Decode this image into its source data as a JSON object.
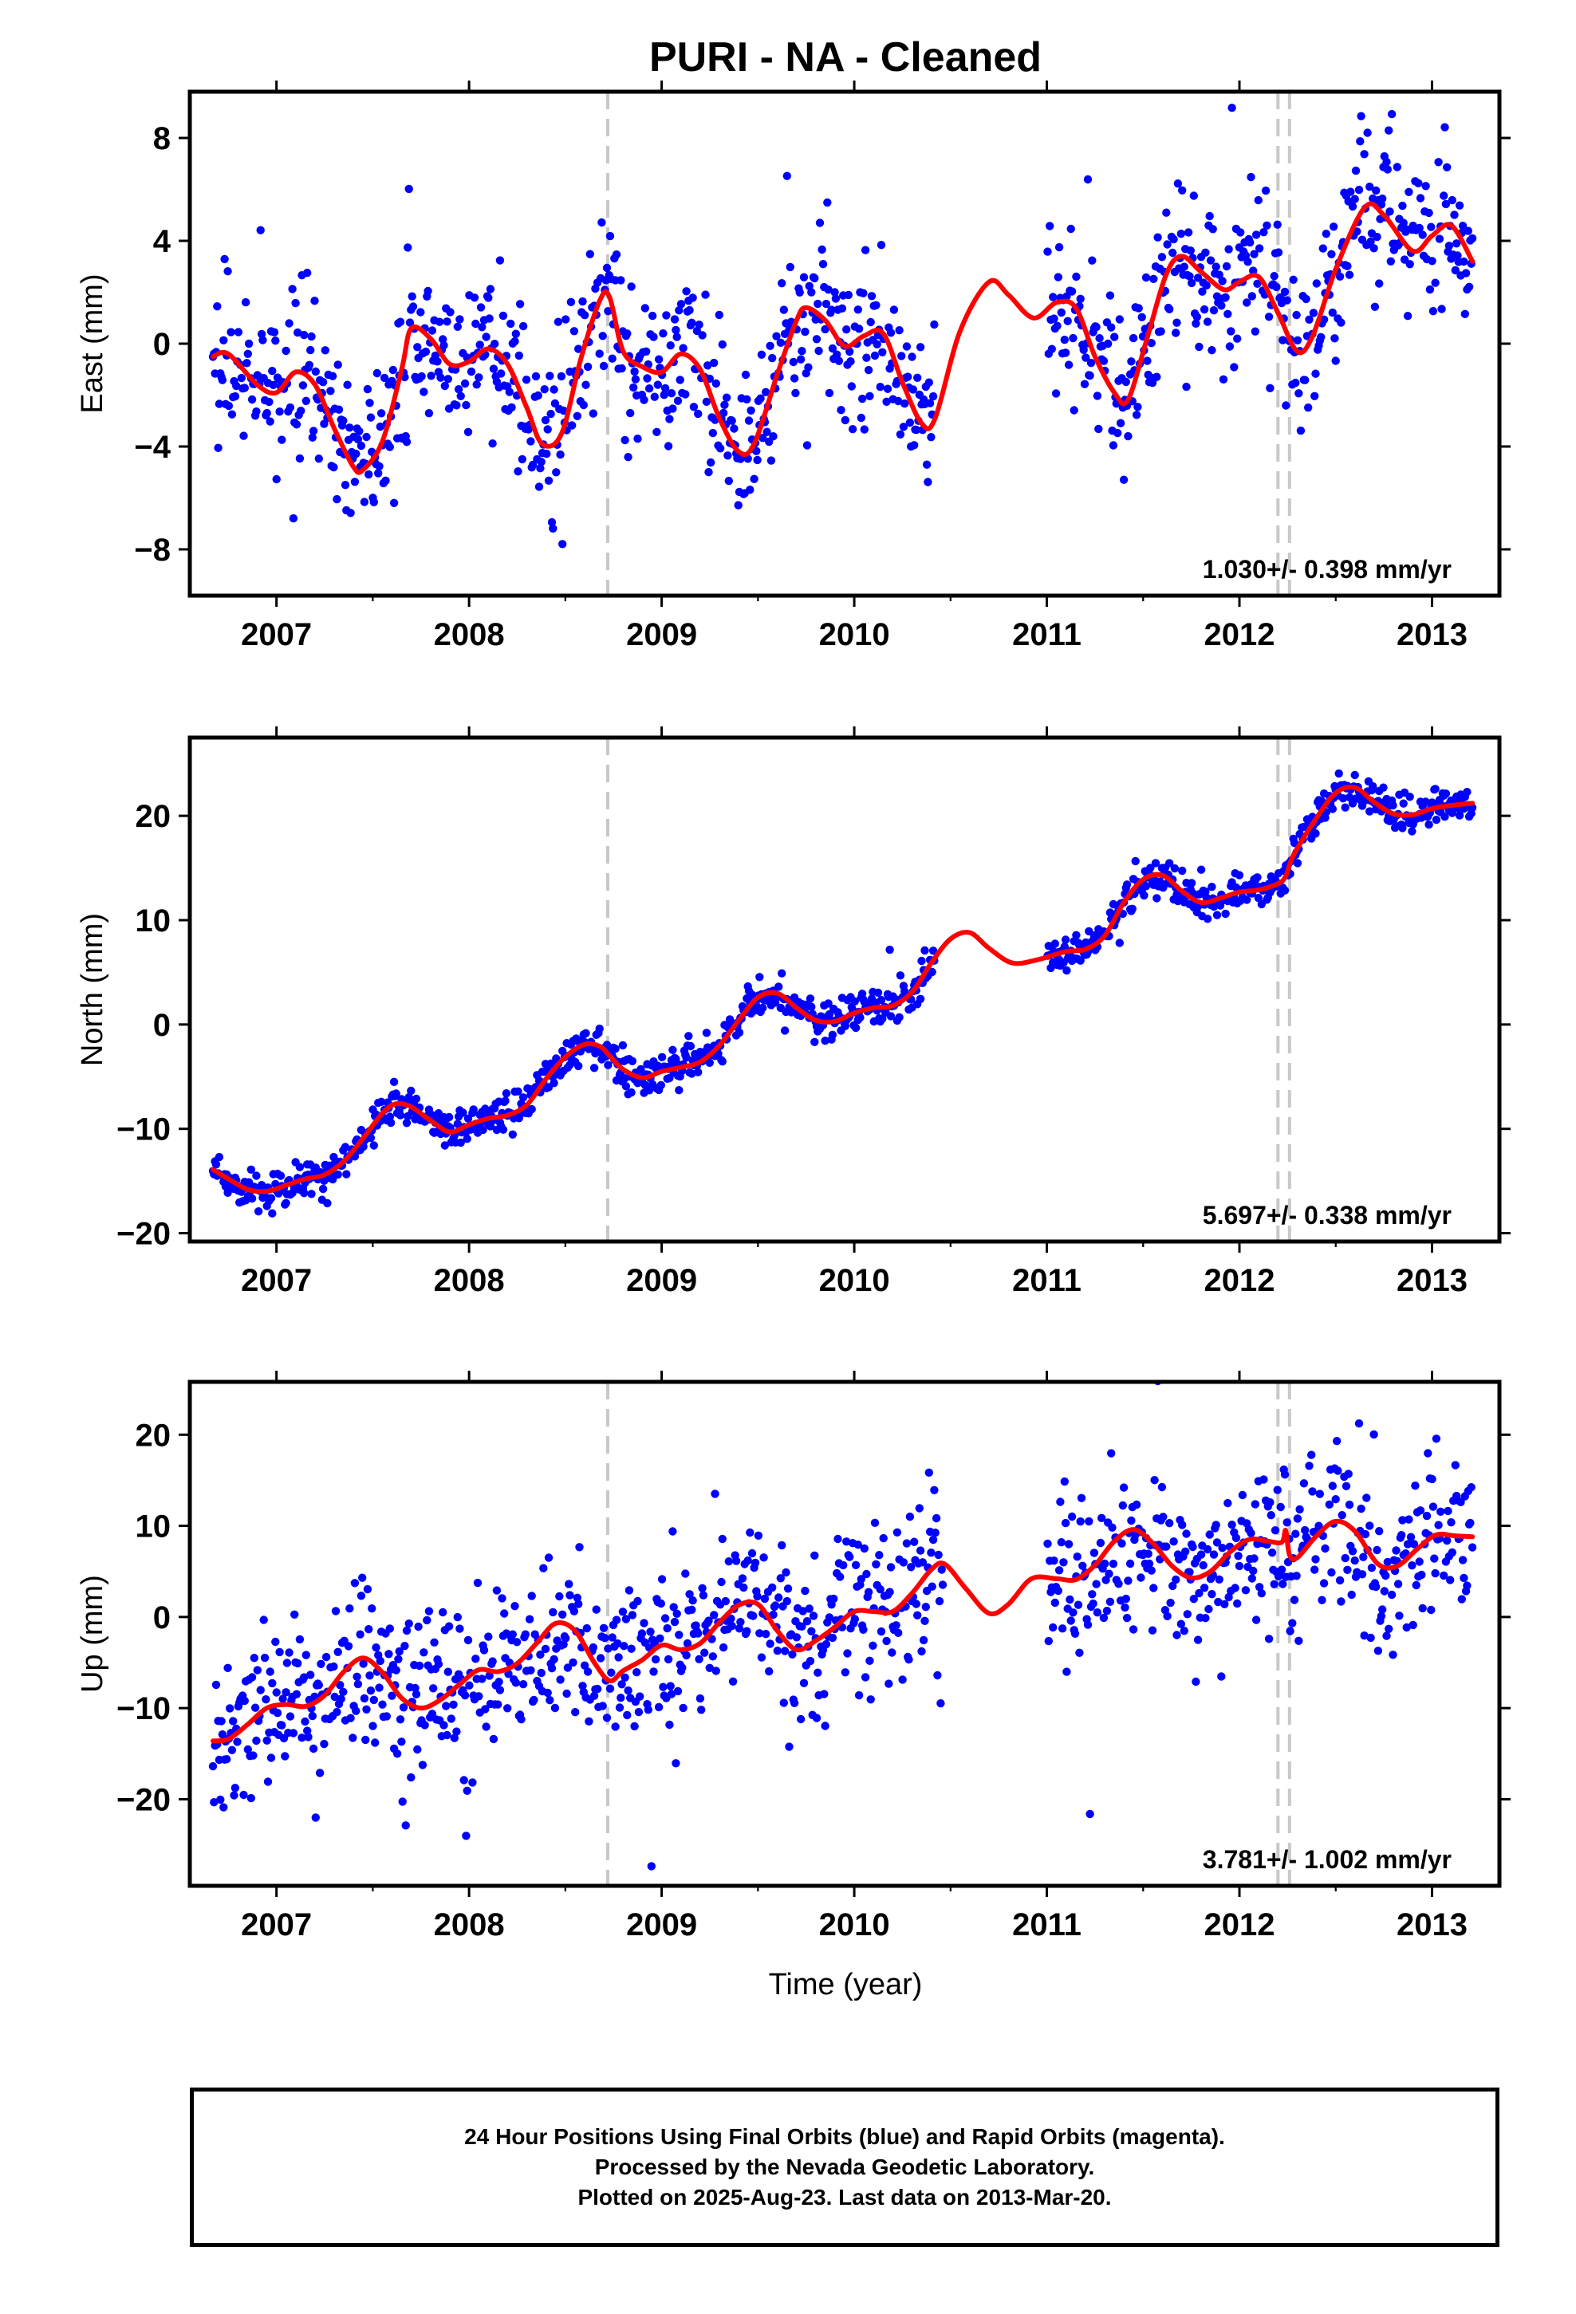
{
  "title": "PURI  - NA - Cleaned",
  "xlabel": "Time (year)",
  "footer": [
    "24 Hour Positions Using Final Orbits (blue) and Rapid Orbits (magenta).",
    "Processed by the Nevada Geodetic Laboratory.",
    "Plotted on 2025-Aug-23. Last data on 2013-Mar-20."
  ],
  "colors": {
    "data": "#0000ff",
    "fit": "#ff0000",
    "event": "#c8c8c8",
    "axis": "#000000"
  },
  "chart_data": [
    {
      "type": "scatter",
      "ylabel": "East (mm)",
      "xlim": [
        2006.55,
        2013.35
      ],
      "ylim": [
        -9.8,
        9.8
      ],
      "xticks": [
        2007,
        2008,
        2009,
        2010,
        2011,
        2012,
        2013
      ],
      "yticks": [
        -8,
        -4,
        0,
        4,
        8
      ],
      "rate": "1.030+/- 0.398 mm/yr",
      "events": [
        2008.72,
        2012.2,
        2012.26
      ],
      "data_gap": [
        2010.42,
        2011.0
      ],
      "trend": {
        "start": 2006.67,
        "end": 2013.21,
        "step": 0.0055,
        "base": -1.0,
        "slope": 1.03,
        "ref": 2006.67,
        "noise": 1.6,
        "outlier_rate": 0.01
      },
      "fit": [
        [
          2006.67,
          -0.5
        ],
        [
          2006.75,
          -0.4
        ],
        [
          2006.9,
          -1.6
        ],
        [
          2007.0,
          -1.9
        ],
        [
          2007.1,
          -1.1
        ],
        [
          2007.2,
          -1.6
        ],
        [
          2007.3,
          -3.3
        ],
        [
          2007.4,
          -4.8
        ],
        [
          2007.45,
          -4.9
        ],
        [
          2007.55,
          -3.8
        ],
        [
          2007.65,
          -1.0
        ],
        [
          2007.7,
          0.6
        ],
        [
          2007.8,
          0.2
        ],
        [
          2007.9,
          -0.8
        ],
        [
          2008.0,
          -0.7
        ],
        [
          2008.1,
          -0.2
        ],
        [
          2008.2,
          -0.8
        ],
        [
          2008.3,
          -2.5
        ],
        [
          2008.38,
          -3.9
        ],
        [
          2008.48,
          -3.5
        ],
        [
          2008.58,
          -0.6
        ],
        [
          2008.68,
          1.7
        ],
        [
          2008.73,
          1.8
        ],
        [
          2008.8,
          -0.3
        ],
        [
          2008.9,
          -0.9
        ],
        [
          2009.0,
          -1.1
        ],
        [
          2009.1,
          -0.4
        ],
        [
          2009.2,
          -1.0
        ],
        [
          2009.3,
          -2.9
        ],
        [
          2009.4,
          -4.2
        ],
        [
          2009.48,
          -3.9
        ],
        [
          2009.6,
          -1.2
        ],
        [
          2009.7,
          0.9
        ],
        [
          2009.75,
          1.4
        ],
        [
          2009.85,
          0.9
        ],
        [
          2009.95,
          -0.1
        ],
        [
          2010.05,
          0.3
        ],
        [
          2010.15,
          0.4
        ],
        [
          2010.25,
          -1.5
        ],
        [
          2010.35,
          -3.1
        ],
        [
          2010.42,
          -2.9
        ],
        [
          2010.55,
          0.5
        ],
        [
          2010.7,
          2.4
        ],
        [
          2010.8,
          1.9
        ],
        [
          2010.93,
          1.0
        ],
        [
          2011.05,
          1.6
        ],
        [
          2011.15,
          1.4
        ],
        [
          2011.25,
          -0.5
        ],
        [
          2011.35,
          -1.9
        ],
        [
          2011.42,
          -2.2
        ],
        [
          2011.52,
          0.2
        ],
        [
          2011.62,
          2.7
        ],
        [
          2011.7,
          3.4
        ],
        [
          2011.8,
          2.8
        ],
        [
          2011.92,
          2.1
        ],
        [
          2012.0,
          2.4
        ],
        [
          2012.1,
          2.6
        ],
        [
          2012.2,
          1.2
        ],
        [
          2012.3,
          -0.3
        ],
        [
          2012.38,
          0.3
        ],
        [
          2012.5,
          2.9
        ],
        [
          2012.65,
          5.3
        ],
        [
          2012.75,
          5.0
        ],
        [
          2012.9,
          3.6
        ],
        [
          2013.0,
          4.2
        ],
        [
          2013.1,
          4.6
        ],
        [
          2013.21,
          3.2
        ]
      ]
    },
    {
      "type": "scatter",
      "ylabel": "North (mm)",
      "xlim": [
        2006.55,
        2013.35
      ],
      "ylim": [
        -20.8,
        27.5
      ],
      "xticks": [
        2007,
        2008,
        2009,
        2010,
        2011,
        2012,
        2013
      ],
      "yticks": [
        -20,
        -10,
        0,
        10,
        20
      ],
      "rate": "5.697+/- 0.338 mm/yr",
      "events": [
        2008.72,
        2012.2,
        2012.26
      ],
      "data_gap": [
        2010.42,
        2011.0
      ],
      "trend": {
        "start": 2006.67,
        "end": 2013.21,
        "step": 0.0055,
        "base": -14.0,
        "slope": 5.697,
        "ref": 2006.67,
        "noise": 0.9,
        "outlier_rate": 0.01
      },
      "fit": [
        [
          2006.67,
          -13.9
        ],
        [
          2006.75,
          -14.8
        ],
        [
          2006.85,
          -15.8
        ],
        [
          2006.95,
          -16.0
        ],
        [
          2007.05,
          -15.4
        ],
        [
          2007.15,
          -14.8
        ],
        [
          2007.25,
          -14.4
        ],
        [
          2007.35,
          -13.1
        ],
        [
          2007.45,
          -10.9
        ],
        [
          2007.55,
          -8.5
        ],
        [
          2007.62,
          -7.6
        ],
        [
          2007.7,
          -7.9
        ],
        [
          2007.8,
          -9.2
        ],
        [
          2007.9,
          -10.3
        ],
        [
          2008.0,
          -9.6
        ],
        [
          2008.1,
          -9.0
        ],
        [
          2008.2,
          -8.7
        ],
        [
          2008.3,
          -7.7
        ],
        [
          2008.4,
          -5.2
        ],
        [
          2008.5,
          -3.1
        ],
        [
          2008.6,
          -1.9
        ],
        [
          2008.68,
          -2.1
        ],
        [
          2008.73,
          -3.0
        ],
        [
          2008.8,
          -4.3
        ],
        [
          2008.9,
          -5.1
        ],
        [
          2009.0,
          -4.5
        ],
        [
          2009.1,
          -4.1
        ],
        [
          2009.2,
          -3.6
        ],
        [
          2009.3,
          -2.0
        ],
        [
          2009.4,
          0.4
        ],
        [
          2009.5,
          2.6
        ],
        [
          2009.6,
          3.0
        ],
        [
          2009.7,
          1.6
        ],
        [
          2009.8,
          0.4
        ],
        [
          2009.9,
          0.3
        ],
        [
          2010.0,
          1.1
        ],
        [
          2010.1,
          1.6
        ],
        [
          2010.2,
          1.8
        ],
        [
          2010.3,
          3.1
        ],
        [
          2010.4,
          5.9
        ],
        [
          2010.5,
          8.2
        ],
        [
          2010.6,
          8.8
        ],
        [
          2010.7,
          7.3
        ],
        [
          2010.82,
          5.9
        ],
        [
          2010.95,
          6.2
        ],
        [
          2011.1,
          7.0
        ],
        [
          2011.2,
          7.2
        ],
        [
          2011.3,
          8.5
        ],
        [
          2011.4,
          11.7
        ],
        [
          2011.5,
          13.9
        ],
        [
          2011.6,
          14.3
        ],
        [
          2011.7,
          12.8
        ],
        [
          2011.8,
          11.7
        ],
        [
          2011.9,
          12.1
        ],
        [
          2012.0,
          12.7
        ],
        [
          2012.1,
          12.9
        ],
        [
          2012.2,
          13.5
        ],
        [
          2012.24,
          14.2
        ],
        [
          2012.28,
          16.2
        ],
        [
          2012.4,
          19.8
        ],
        [
          2012.5,
          22.2
        ],
        [
          2012.6,
          22.7
        ],
        [
          2012.7,
          21.3
        ],
        [
          2012.8,
          20.2
        ],
        [
          2012.9,
          20.1
        ],
        [
          2013.0,
          20.7
        ],
        [
          2013.1,
          21.0
        ],
        [
          2013.21,
          21.2
        ]
      ]
    },
    {
      "type": "scatter",
      "ylabel": "Up (mm)",
      "xlim": [
        2006.55,
        2013.35
      ],
      "ylim": [
        -29.5,
        25.8
      ],
      "xticks": [
        2007,
        2008,
        2009,
        2010,
        2011,
        2012,
        2013
      ],
      "yticks": [
        -20,
        -10,
        0,
        10,
        20
      ],
      "rate": "3.781+/- 1.002 mm/yr",
      "events": [
        2008.72,
        2012.2,
        2012.26
      ],
      "data_gap": [
        2010.46,
        2011.0
      ],
      "trend": {
        "start": 2006.67,
        "end": 2013.21,
        "step": 0.0055,
        "base": -13.0,
        "slope": 3.781,
        "ref": 2006.67,
        "noise": 4.5,
        "outlier_rate": 0.015
      },
      "fit": [
        [
          2006.67,
          -13.6
        ],
        [
          2006.75,
          -13.4
        ],
        [
          2006.85,
          -11.8
        ],
        [
          2006.95,
          -10.0
        ],
        [
          2007.05,
          -9.6
        ],
        [
          2007.15,
          -9.8
        ],
        [
          2007.25,
          -8.6
        ],
        [
          2007.35,
          -6.0
        ],
        [
          2007.45,
          -4.5
        ],
        [
          2007.55,
          -6.1
        ],
        [
          2007.65,
          -8.9
        ],
        [
          2007.75,
          -10.0
        ],
        [
          2007.85,
          -9.1
        ],
        [
          2007.95,
          -7.4
        ],
        [
          2008.05,
          -5.8
        ],
        [
          2008.15,
          -6.0
        ],
        [
          2008.25,
          -5.1
        ],
        [
          2008.35,
          -2.9
        ],
        [
          2008.45,
          -0.7
        ],
        [
          2008.55,
          -1.5
        ],
        [
          2008.65,
          -5.0
        ],
        [
          2008.73,
          -7.0
        ],
        [
          2008.8,
          -5.9
        ],
        [
          2008.9,
          -4.7
        ],
        [
          2009.0,
          -3.1
        ],
        [
          2009.1,
          -3.6
        ],
        [
          2009.2,
          -2.9
        ],
        [
          2009.3,
          -0.6
        ],
        [
          2009.4,
          1.3
        ],
        [
          2009.5,
          1.4
        ],
        [
          2009.6,
          -1.5
        ],
        [
          2009.7,
          -3.6
        ],
        [
          2009.8,
          -2.6
        ],
        [
          2009.9,
          -1.1
        ],
        [
          2010.0,
          0.6
        ],
        [
          2010.1,
          0.6
        ],
        [
          2010.2,
          0.6
        ],
        [
          2010.3,
          2.6
        ],
        [
          2010.4,
          5.2
        ],
        [
          2010.47,
          5.8
        ],
        [
          2010.58,
          3.1
        ],
        [
          2010.7,
          0.4
        ],
        [
          2010.8,
          1.4
        ],
        [
          2010.92,
          4.2
        ],
        [
          2011.05,
          4.2
        ],
        [
          2011.15,
          4.1
        ],
        [
          2011.25,
          5.7
        ],
        [
          2011.35,
          8.3
        ],
        [
          2011.45,
          9.6
        ],
        [
          2011.55,
          8.1
        ],
        [
          2011.65,
          5.6
        ],
        [
          2011.75,
          4.3
        ],
        [
          2011.85,
          5.0
        ],
        [
          2011.95,
          7.1
        ],
        [
          2012.05,
          8.5
        ],
        [
          2012.15,
          8.3
        ],
        [
          2012.22,
          8.2
        ],
        [
          2012.24,
          9.5
        ],
        [
          2012.26,
          6.8
        ],
        [
          2012.3,
          6.5
        ],
        [
          2012.4,
          8.9
        ],
        [
          2012.5,
          10.5
        ],
        [
          2012.6,
          9.4
        ],
        [
          2012.72,
          5.8
        ],
        [
          2012.82,
          5.6
        ],
        [
          2012.92,
          7.4
        ],
        [
          2013.02,
          9.0
        ],
        [
          2013.12,
          8.9
        ],
        [
          2013.21,
          8.8
        ]
      ]
    }
  ]
}
